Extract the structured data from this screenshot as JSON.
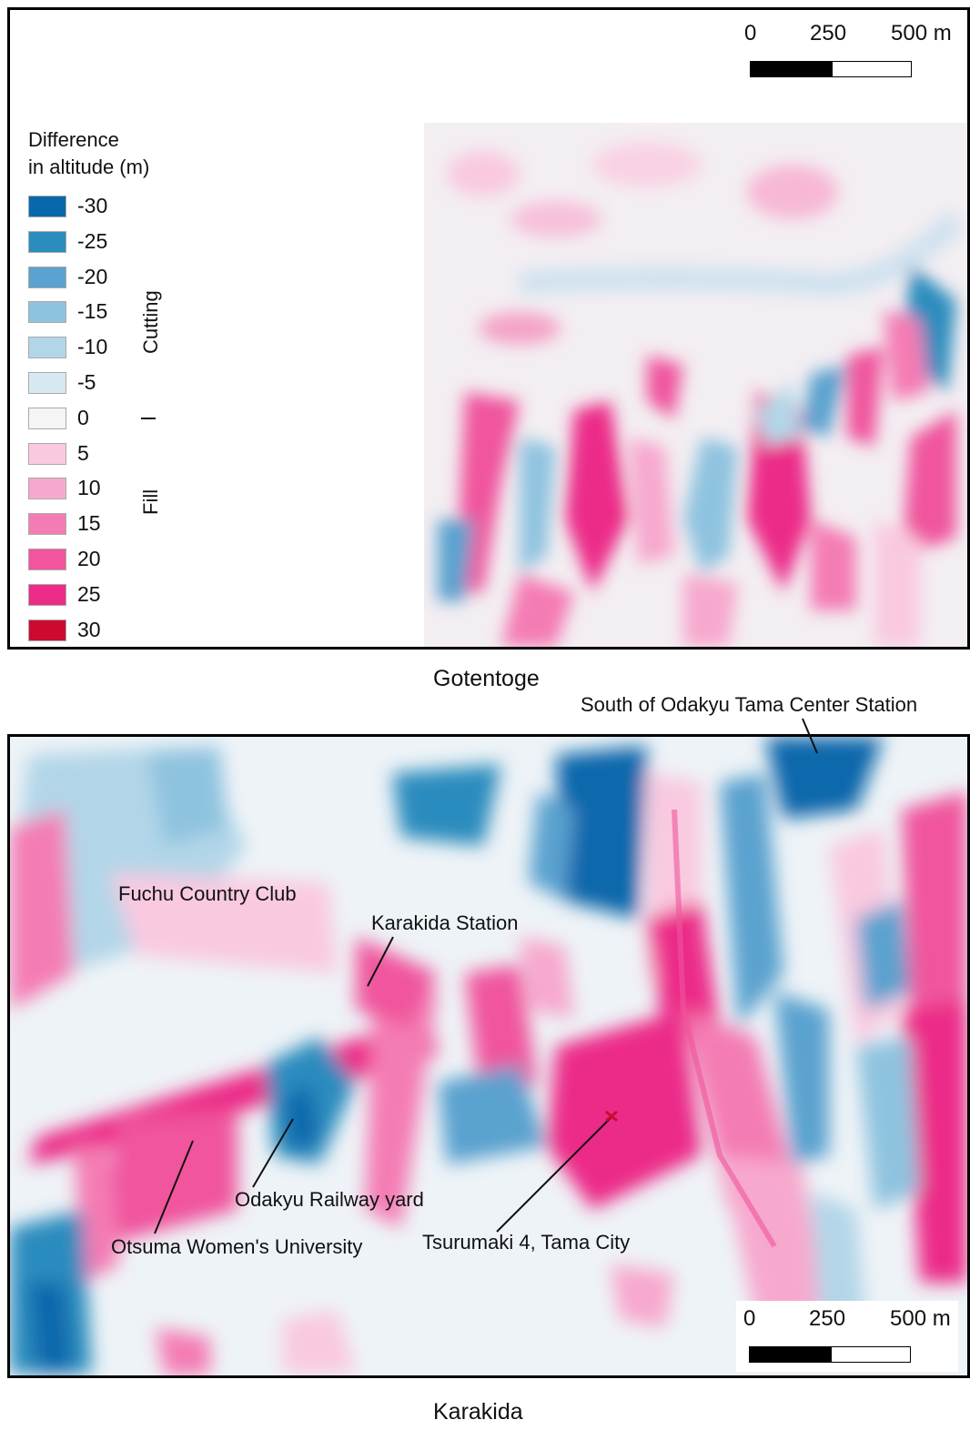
{
  "legend": {
    "title_line1": "Difference",
    "title_line2": "in altitude (m)",
    "items": [
      {
        "label": "-30",
        "color": "#0868ac"
      },
      {
        "label": "-25",
        "color": "#2b8cbe"
      },
      {
        "label": "-20",
        "color": "#5aa2cf"
      },
      {
        "label": "-15",
        "color": "#8ec3df"
      },
      {
        "label": "-10",
        "color": "#b2d6e8"
      },
      {
        "label": "-5",
        "color": "#d8e8f2"
      },
      {
        "label": "0",
        "color": "#f5f5f5"
      },
      {
        "label": "5",
        "color": "#f9c9e0"
      },
      {
        "label": "10",
        "color": "#f7a8cd"
      },
      {
        "label": "15",
        "color": "#f47cb4"
      },
      {
        "label": "20",
        "color": "#f0559d"
      },
      {
        "label": "25",
        "color": "#ec2c88"
      },
      {
        "label": "30",
        "color": "#cc0a30"
      }
    ],
    "cutting_label": "Cutting",
    "fill_label": "Fill"
  },
  "scalebar": {
    "tick_0": "0",
    "tick_250": "250",
    "tick_500": "500 m"
  },
  "panels": {
    "top_caption": "Gotentoge",
    "bottom_caption": "Karakida"
  },
  "annotations": {
    "tama_center": "South of Odakyu Tama Center Station",
    "fuchu": "Fuchu Country Club",
    "karakida_station": "Karakida Station",
    "railway_yard": "Odakyu Railway yard",
    "otsuma": "Otsuma Women's University",
    "tsurumaki": "Tsurumaki 4, Tama City"
  }
}
